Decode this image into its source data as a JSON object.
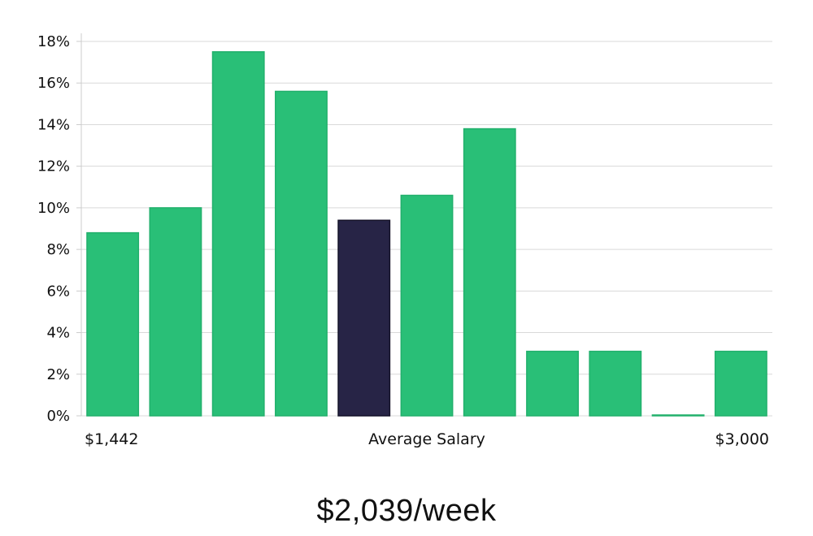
{
  "chart_data": {
    "type": "bar",
    "values": [
      8.8,
      10.0,
      17.5,
      15.6,
      9.4,
      10.6,
      13.8,
      3.1,
      3.1,
      0.0,
      3.1
    ],
    "highlight_index": 4,
    "ylim": [
      0,
      18
    ],
    "yticks": [
      0,
      2,
      4,
      6,
      8,
      10,
      12,
      14,
      16,
      18
    ],
    "ytick_suffix": "%",
    "grid": true,
    "x_min_label": "$1,442",
    "x_center_label": "Average Salary",
    "x_max_label": "$3,000"
  },
  "summary": "$2,039/week",
  "colors": {
    "bar": "#29bf77",
    "bar_border": "#22b06c",
    "highlight": "#272446",
    "highlight_border": "#141228"
  }
}
